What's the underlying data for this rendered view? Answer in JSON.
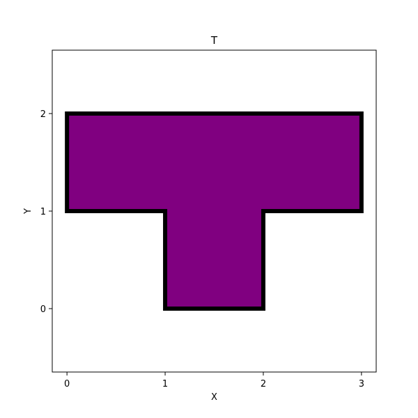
{
  "chart_data": {
    "type": "area",
    "title": "T",
    "xlabel": "X",
    "ylabel": "Y",
    "xlim": [
      -0.15,
      3.15
    ],
    "ylim": [
      -0.65,
      2.65
    ],
    "xticks": [
      0,
      1,
      2,
      3
    ],
    "yticks": [
      0,
      1,
      2
    ],
    "grid": false,
    "series": [
      {
        "shape": "polygon",
        "points": [
          [
            0,
            1
          ],
          [
            0,
            2
          ],
          [
            3,
            2
          ],
          [
            3,
            1
          ],
          [
            2,
            1
          ],
          [
            2,
            0
          ],
          [
            1,
            0
          ],
          [
            1,
            1
          ]
        ],
        "fill": "#800080",
        "edgecolor": "#000000"
      }
    ]
  }
}
